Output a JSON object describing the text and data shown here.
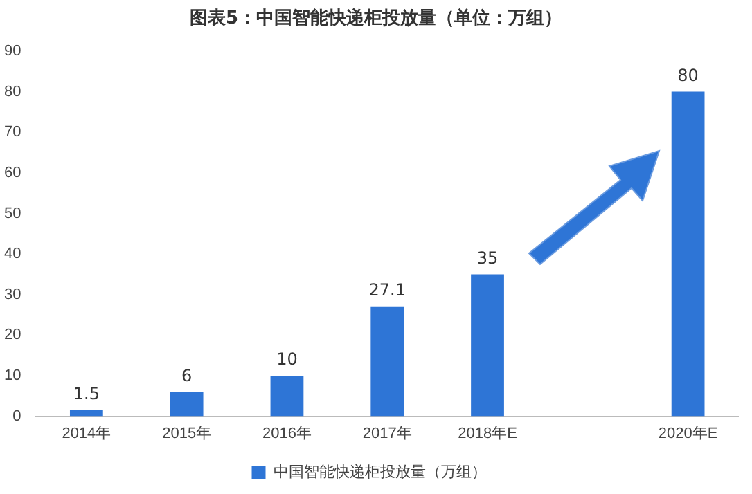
{
  "chart_data": {
    "type": "bar",
    "title": "图表5：中国智能快递柜投放量（单位：万组）",
    "categories": [
      "2014年",
      "2015年",
      "2016年",
      "2017年",
      "2018年E",
      null,
      "2020年E"
    ],
    "series": [
      {
        "name": "中国智能快递柜投放量（万组）",
        "color": "#2e75d6",
        "values": [
          1.5,
          6,
          10,
          27.1,
          35,
          null,
          80
        ]
      }
    ],
    "ylim": [
      0,
      90
    ],
    "yticks": [
      0,
      10,
      20,
      30,
      40,
      50,
      60,
      70,
      80,
      90
    ],
    "grid": false,
    "legend": "bottom",
    "data_labels": true
  }
}
